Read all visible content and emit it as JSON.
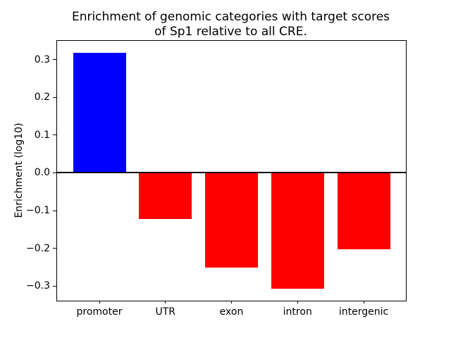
{
  "chart_data": {
    "type": "bar",
    "title": "Enrichment of genomic categories with target scores\nof Sp1 relative to all CRE.",
    "xlabel": "",
    "ylabel": "Enrichment (log10)",
    "categories": [
      "promoter",
      "UTR",
      "exon",
      "intron",
      "intergenic"
    ],
    "values": [
      0.319,
      -0.123,
      -0.252,
      -0.307,
      -0.203
    ],
    "bar_colors": [
      "#0000ff",
      "#ff0000",
      "#ff0000",
      "#ff0000",
      "#ff0000"
    ],
    "positive_color": "#0000ff",
    "negative_color": "#ff0000",
    "ylim": [
      -0.339,
      0.35
    ],
    "yticks": [
      {
        "value": 0.3,
        "label": "0.3"
      },
      {
        "value": 0.2,
        "label": "0.2"
      },
      {
        "value": 0.1,
        "label": "0.1"
      },
      {
        "value": 0.0,
        "label": "0.0"
      },
      {
        "value": -0.1,
        "label": "−0.1"
      },
      {
        "value": -0.2,
        "label": "−0.2"
      },
      {
        "value": -0.3,
        "label": "−0.3"
      }
    ],
    "zero_line": true,
    "grid": false,
    "legend": "none",
    "bar_width_fraction": 0.8
  }
}
